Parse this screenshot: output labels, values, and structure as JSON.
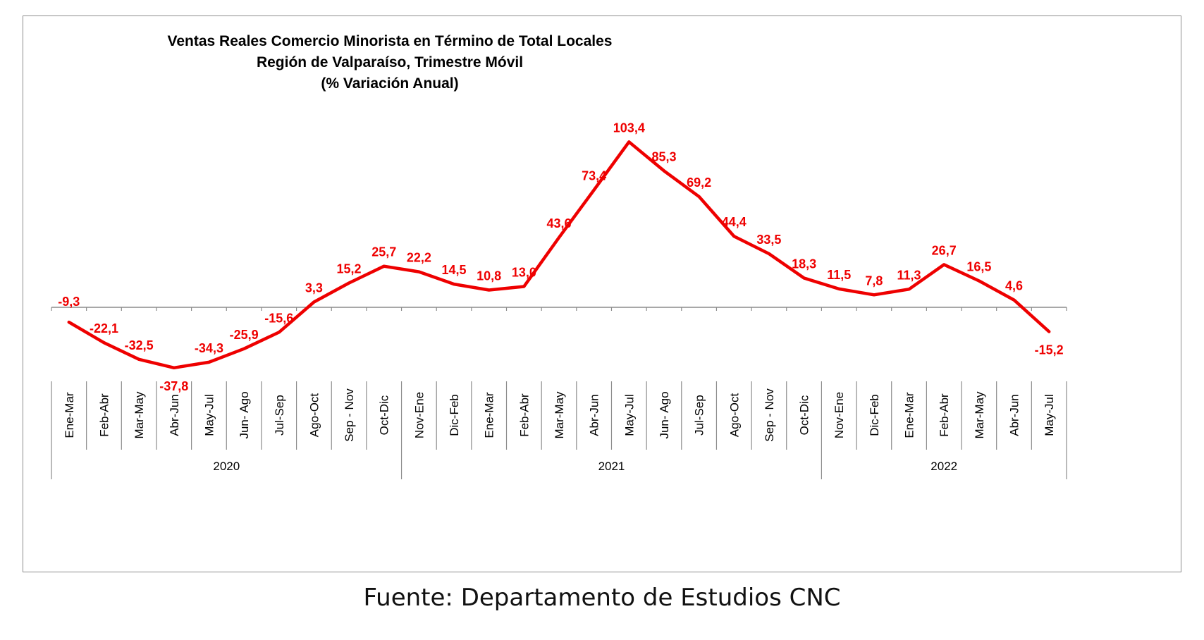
{
  "chart_data": {
    "type": "line",
    "title": [
      "Ventas Reales Comercio Minorista  en Término de Total Locales",
      "Región de Valparaíso, Trimestre Móvil",
      "(% Variación Anual)"
    ],
    "categories": [
      "Ene-Mar",
      "Feb-Abr",
      "Mar-May",
      "Abr-Jun",
      "May-Jul",
      "Jun- Ago",
      "Jul-Sep",
      "Ago-Oct",
      "Sep - Nov",
      "Oct-Dic",
      "Nov-Ene",
      "Dic-Feb",
      "Ene-Mar",
      "Feb-Abr",
      "Mar-May",
      "Abr-Jun",
      "May-Jul",
      "Jun- Ago",
      "Jul-Sep",
      "Ago-Oct",
      "Sep - Nov",
      "Oct-Dic",
      "Nov-Ene",
      "Dic-Feb",
      "Ene-Mar",
      "Feb-Abr",
      "Mar-May",
      "Abr-Jun",
      "May-Jul"
    ],
    "groups": [
      {
        "label": "2020",
        "count": 10
      },
      {
        "label": "2021",
        "count": 12
      },
      {
        "label": "2022",
        "count": 7
      }
    ],
    "series": [
      {
        "values": [
          -9.3,
          -22.1,
          -32.5,
          -37.8,
          -34.3,
          -25.9,
          -15.6,
          3.3,
          15.2,
          25.7,
          22.2,
          14.5,
          10.8,
          13.0,
          43.6,
          73.4,
          103.4,
          85.3,
          69.2,
          44.4,
          33.5,
          18.3,
          11.5,
          7.8,
          11.3,
          26.7,
          16.5,
          4.6,
          -15.2
        ],
        "labels": [
          "-9,3",
          "-22,1",
          "-32,5",
          "-37,8",
          "-34,3",
          "-25,9",
          "-15,6",
          "3,3",
          "15,2",
          "25,7",
          "22,2",
          "14,5",
          "10,8",
          "13,0",
          "43,6",
          "73,4",
          "103,4",
          "85,3",
          "69,2",
          "44,4",
          "33,5",
          "18,3",
          "11,5",
          "7,8",
          "11,3",
          "26,7",
          "16,5",
          "4,6",
          "-15,2"
        ]
      }
    ],
    "line_color": "#ee0000",
    "grid": false,
    "legend": "none"
  },
  "source": "Fuente: Departamento de Estudios CNC"
}
